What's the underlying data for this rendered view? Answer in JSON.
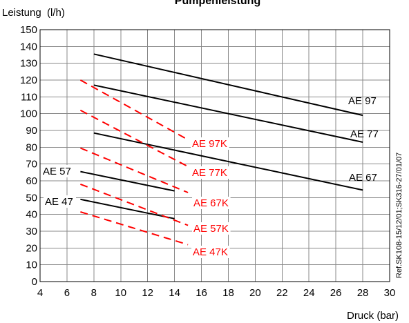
{
  "chart_data": {
    "type": "line",
    "title": "Pumpenleistung",
    "ylabel": "Leistung  (l/h)",
    "xlabel": "Druck (bar)",
    "xlim": [
      4,
      30
    ],
    "ylim": [
      0,
      150
    ],
    "x_ticks": [
      4,
      6,
      8,
      10,
      12,
      14,
      16,
      18,
      20,
      22,
      24,
      26,
      28,
      30
    ],
    "y_ticks": [
      0,
      10,
      20,
      30,
      40,
      50,
      60,
      70,
      80,
      90,
      100,
      110,
      120,
      130,
      140,
      150
    ],
    "grid": true,
    "reference": "Ref.SK108-15/12/01;SK316-27/01/07",
    "series": [
      {
        "name": "AE 97",
        "style": "solid",
        "color": "#000000",
        "x": [
          8,
          28
        ],
        "y": [
          135.5,
          99
        ]
      },
      {
        "name": "AE 77",
        "style": "solid",
        "color": "#000000",
        "x": [
          8,
          28
        ],
        "y": [
          117,
          83
        ]
      },
      {
        "name": "AE 67",
        "style": "solid",
        "color": "#000000",
        "x": [
          8,
          28
        ],
        "y": [
          88.5,
          54.5
        ]
      },
      {
        "name": "AE 57",
        "style": "solid",
        "color": "#000000",
        "x": [
          7,
          14
        ],
        "y": [
          65.5,
          54
        ]
      },
      {
        "name": "AE 47",
        "style": "solid",
        "color": "#000000",
        "x": [
          7,
          14
        ],
        "y": [
          49,
          37.5
        ]
      },
      {
        "name": "AE 97K",
        "style": "dashed",
        "color": "#ff0000",
        "x": [
          7,
          15
        ],
        "y": [
          120,
          84.5
        ]
      },
      {
        "name": "AE 77K",
        "style": "dashed",
        "color": "#ff0000",
        "x": [
          7,
          15
        ],
        "y": [
          102,
          68.5
        ]
      },
      {
        "name": "AE 67K",
        "style": "dashed",
        "color": "#ff0000",
        "x": [
          7,
          15
        ],
        "y": [
          79.5,
          53
        ]
      },
      {
        "name": "AE 57K",
        "style": "dashed",
        "color": "#ff0000",
        "x": [
          7,
          15
        ],
        "y": [
          58,
          33.5
        ]
      },
      {
        "name": "AE 47K",
        "style": "dashed",
        "color": "#ff0000",
        "x": [
          7,
          15
        ],
        "y": [
          41.5,
          22
        ]
      }
    ]
  }
}
